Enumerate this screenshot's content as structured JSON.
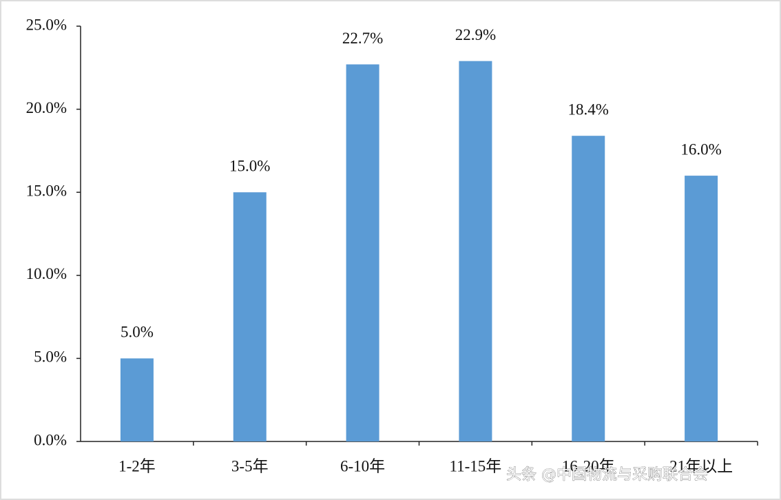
{
  "chart_data": {
    "type": "bar",
    "categories": [
      "1-2年",
      "3-5年",
      "6-10年",
      "11-15年",
      "16-20年",
      "21年以上"
    ],
    "values": [
      5.0,
      15.0,
      22.7,
      22.9,
      18.4,
      16.0
    ],
    "value_labels": [
      "5.0%",
      "15.0%",
      "22.7%",
      "22.9%",
      "18.4%",
      "16.0%"
    ],
    "color": "#5b9bd5",
    "ylim": [
      0,
      25
    ],
    "yticks": [
      {
        "value": 0,
        "label": "0.0%"
      },
      {
        "value": 5,
        "label": "5.0%"
      },
      {
        "value": 10,
        "label": "10.0%"
      },
      {
        "value": 15,
        "label": "15.0%"
      },
      {
        "value": 20,
        "label": "20.0%"
      },
      {
        "value": 25,
        "label": "25.0%"
      }
    ],
    "grid": false
  },
  "watermark": "头条 @中国物流与采购联合会"
}
